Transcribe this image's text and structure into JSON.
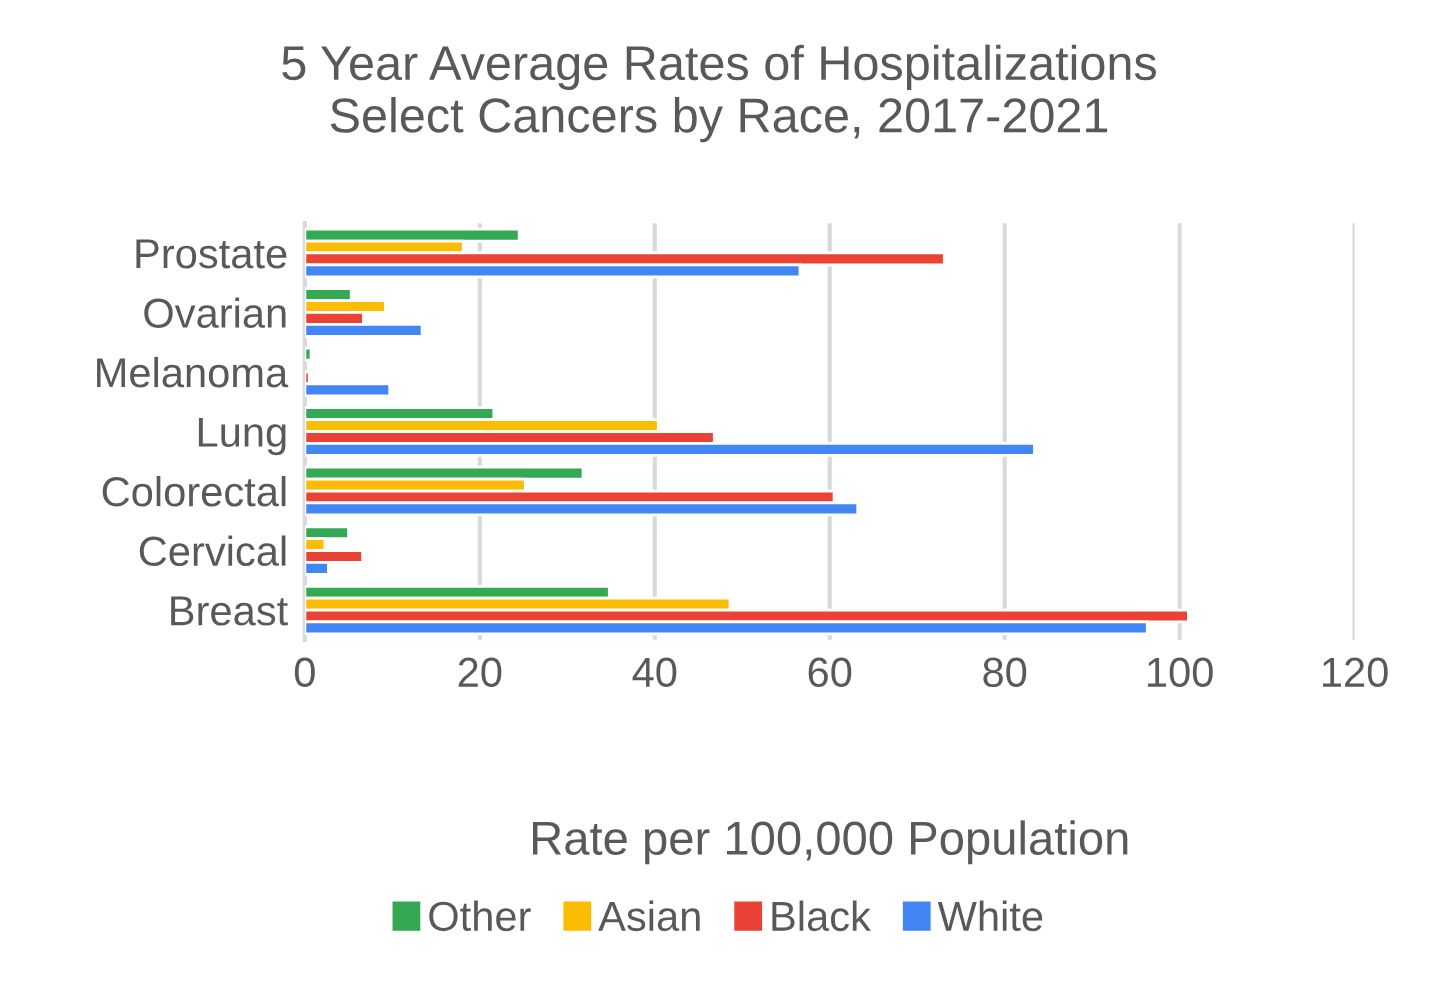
{
  "chart_data": {
    "type": "bar",
    "orientation": "horizontal",
    "title": "5 Year Average Rates of Hospitalizations\nSelect Cancers by Race, 2017-2021",
    "xlabel": "Rate per 100,000 Population",
    "categories": [
      "Prostate",
      "Ovarian",
      "Melanoma",
      "Lung",
      "Colorectal",
      "Cervical",
      "Breast"
    ],
    "series": [
      {
        "name": "Other",
        "color": "#34a853",
        "values": [
          24.5,
          5.3,
          0.7,
          21.6,
          31.8,
          5.0,
          34.8
        ]
      },
      {
        "name": "Asian",
        "color": "#fbbc04",
        "values": [
          18.1,
          9.2,
          null,
          40.4,
          25.2,
          2.3,
          48.6
        ]
      },
      {
        "name": "Black",
        "color": "#ea4335",
        "values": [
          73.1,
          6.7,
          0.5,
          46.8,
          60.5,
          6.6,
          101.0
        ]
      },
      {
        "name": "White",
        "color": "#4285f4",
        "values": [
          56.6,
          13.4,
          9.7,
          83.4,
          63.2,
          2.7,
          96.3
        ]
      }
    ],
    "xlim": [
      0,
      120
    ],
    "xticks": [
      0,
      20,
      40,
      60,
      80,
      100,
      120
    ],
    "grid": "x",
    "legend": "bottom"
  }
}
